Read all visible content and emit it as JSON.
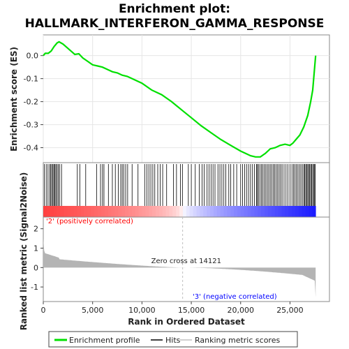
{
  "chart_data": {
    "type": "line",
    "title": "Enrichment plot:\nHALLMARK_INTERFERON_GAMMA_RESPONSE",
    "xlabel": "Rank in Ordered Dataset",
    "ylabel_top": "Enrichment score (ES)",
    "ylabel_bottom": "Ranked list metric (Signal2Noise)",
    "x_ticks": [
      "0",
      "5,000",
      "10,000",
      "15,000",
      "20,000",
      "25,000"
    ],
    "es_yticks": [
      "0.0",
      "-0.1",
      "-0.2",
      "-0.3",
      "-0.4"
    ],
    "metric_yticks": [
      "2",
      "1",
      "0",
      "-1"
    ],
    "xlim": [
      0,
      29000
    ],
    "es_ylim": [
      -0.465,
      0.09
    ],
    "metric_ylim": [
      -1.75,
      2.6
    ],
    "zero_cross_rank": 14121,
    "zero_cross_label": "Zero cross at 14121",
    "positive_label": "'2' (positively correlated)",
    "negative_label": "'3' (negative correlated)",
    "n_genes": 27600,
    "enrichment_profile": {
      "name": "Enrichment profile",
      "x": [
        0,
        200,
        500,
        800,
        1100,
        1400,
        1600,
        2000,
        2400,
        2800,
        3200,
        3600,
        4000,
        4500,
        5000,
        5500,
        6000,
        6500,
        7000,
        7500,
        8000,
        8500,
        9000,
        10000,
        11000,
        12000,
        13000,
        14000,
        15000,
        16000,
        17000,
        18000,
        19000,
        20000,
        20500,
        21000,
        21500,
        22000,
        22500,
        23000,
        23500,
        24000,
        24500,
        25000,
        25300,
        25600,
        26000,
        26400,
        26800,
        27100,
        27300,
        27400,
        27500,
        27600
      ],
      "y": [
        0.0,
        0.01,
        0.01,
        0.02,
        0.04,
        0.055,
        0.06,
        0.05,
        0.035,
        0.02,
        0.005,
        0.008,
        -0.01,
        -0.025,
        -0.04,
        -0.045,
        -0.05,
        -0.06,
        -0.07,
        -0.075,
        -0.085,
        -0.09,
        -0.1,
        -0.12,
        -0.15,
        -0.17,
        -0.2,
        -0.235,
        -0.27,
        -0.305,
        -0.335,
        -0.365,
        -0.39,
        -0.415,
        -0.425,
        -0.435,
        -0.44,
        -0.44,
        -0.425,
        -0.405,
        -0.4,
        -0.39,
        -0.385,
        -0.39,
        -0.38,
        -0.365,
        -0.345,
        -0.31,
        -0.26,
        -0.2,
        -0.15,
        -0.1,
        -0.05,
        0.0
      ]
    },
    "hits": [
      120,
      300,
      480,
      650,
      760,
      870,
      980,
      1080,
      1180,
      1280,
      1400,
      1520,
      1650,
      1850,
      3450,
      3700,
      4300,
      5400,
      5800,
      6000,
      6150,
      6600,
      7000,
      7300,
      7600,
      7850,
      8000,
      8150,
      8350,
      8550,
      9000,
      9600,
      10300,
      10500,
      10700,
      10900,
      11100,
      11300,
      11600,
      11850,
      12100,
      12500,
      13200,
      13500,
      13900,
      14100,
      14700,
      15000,
      15400,
      15800,
      16100,
      16300,
      16600,
      16800,
      17000,
      17200,
      17400,
      17700,
      17900,
      18100,
      18300,
      18500,
      18800,
      19000,
      19300,
      19600,
      20000,
      20200,
      20400,
      20600,
      20800,
      21000,
      21200,
      21400,
      21600,
      21700,
      21800,
      21950,
      22100,
      22250,
      22400,
      22550,
      22700,
      22850,
      23000,
      23150,
      23300,
      23450,
      23600,
      23750,
      23900,
      24050,
      24200,
      24400,
      24600,
      24800,
      25000,
      25200,
      25350,
      25500,
      25650,
      25800,
      25950,
      26100,
      26250,
      26400,
      26500,
      26600,
      26700,
      26800,
      26900,
      27000,
      27100,
      27200,
      27300,
      27400,
      27500,
      27550
    ],
    "legend": [
      "Enrichment profile",
      "Hits",
      "Ranking metric scores"
    ],
    "colors": {
      "profile": "#00e000",
      "hits": "#000000",
      "metric_fill": "#b4b4b4",
      "positive": "#ff0000",
      "negative": "#0000ff",
      "zero_line": "#c0c0c0",
      "positive_label": "#ff0000",
      "negative_label": "#0000ff"
    }
  }
}
